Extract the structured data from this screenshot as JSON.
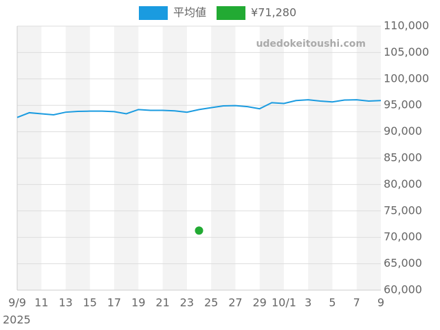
{
  "chart_data": {
    "type": "line",
    "categories": [
      "9/9",
      null,
      "11",
      null,
      "13",
      null,
      "15",
      null,
      "17",
      null,
      "19",
      null,
      "21",
      null,
      "23",
      null,
      "25",
      null,
      "27",
      null,
      "29",
      null,
      "10/1",
      null,
      "3",
      null,
      "5",
      null,
      "7",
      null,
      "9"
    ],
    "year_label": "2025",
    "watermark": "udedokeitoushi.com",
    "series": [
      {
        "name": "平均値",
        "color": "#1a9be0",
        "values": [
          92700,
          93600,
          93400,
          93200,
          93700,
          93850,
          93900,
          93900,
          93800,
          93400,
          94200,
          94050,
          94050,
          93950,
          93700,
          94200,
          94550,
          94900,
          94950,
          94750,
          94350,
          95500,
          95350,
          95900,
          96050,
          95800,
          95650,
          96000,
          96050,
          95800,
          95900
        ]
      },
      {
        "name": "¥71,280",
        "color": "#22aa33",
        "values": [
          null,
          null,
          null,
          null,
          null,
          null,
          null,
          null,
          null,
          null,
          null,
          null,
          null,
          null,
          null,
          71280,
          null,
          null,
          null,
          null,
          null,
          null,
          null,
          null,
          null,
          null,
          null,
          null,
          null,
          null,
          null
        ]
      }
    ],
    "ylim": [
      60000,
      110000
    ],
    "yticks": [
      {
        "value": 60000,
        "label": "60,000"
      },
      {
        "value": 65000,
        "label": "65,000"
      },
      {
        "value": 70000,
        "label": "70,000"
      },
      {
        "value": 75000,
        "label": "75,000"
      },
      {
        "value": 80000,
        "label": "80,000"
      },
      {
        "value": 85000,
        "label": "85,000"
      },
      {
        "value": 90000,
        "label": "90,000"
      },
      {
        "value": 95000,
        "label": "95,000"
      },
      {
        "value": 100000,
        "label": "100,000"
      },
      {
        "value": 105000,
        "label": "105,000"
      },
      {
        "value": 110000,
        "label": "110,000"
      }
    ],
    "grid": true,
    "legend": "top"
  }
}
